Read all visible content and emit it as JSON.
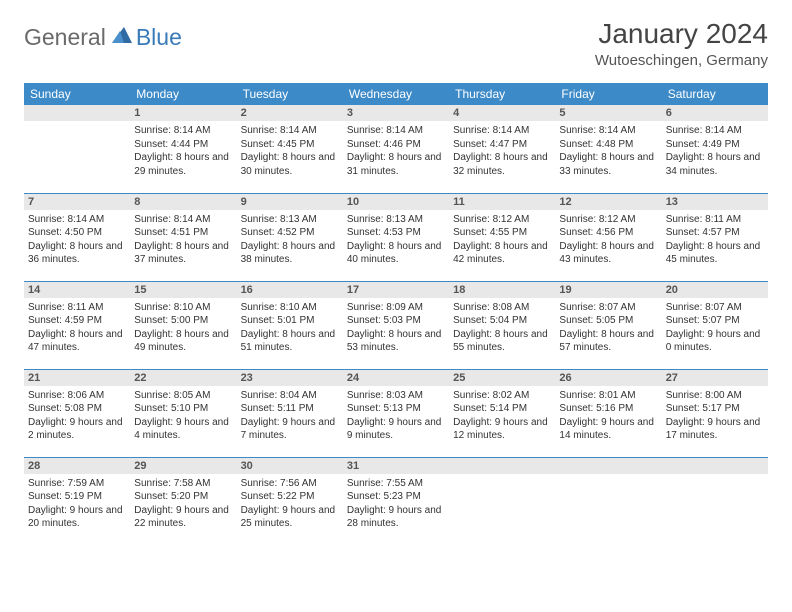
{
  "brand": {
    "part1": "General",
    "part2": "Blue"
  },
  "title": "January 2024",
  "location": "Wutoeschingen, Germany",
  "colors": {
    "header_bg": "#3c8ac8",
    "header_text": "#ffffff",
    "daynum_bg": "#e8e8e8",
    "daynum_text": "#555555",
    "body_text": "#333333",
    "rule": "#3c8ac8",
    "logo_gray": "#6a6a6a",
    "logo_blue": "#3a7ab8"
  },
  "weekdays": [
    "Sunday",
    "Monday",
    "Tuesday",
    "Wednesday",
    "Thursday",
    "Friday",
    "Saturday"
  ],
  "first_day_index": 1,
  "days": [
    {
      "n": 1,
      "sunrise": "8:14 AM",
      "sunset": "4:44 PM",
      "daylight": "8 hours and 29 minutes."
    },
    {
      "n": 2,
      "sunrise": "8:14 AM",
      "sunset": "4:45 PM",
      "daylight": "8 hours and 30 minutes."
    },
    {
      "n": 3,
      "sunrise": "8:14 AM",
      "sunset": "4:46 PM",
      "daylight": "8 hours and 31 minutes."
    },
    {
      "n": 4,
      "sunrise": "8:14 AM",
      "sunset": "4:47 PM",
      "daylight": "8 hours and 32 minutes."
    },
    {
      "n": 5,
      "sunrise": "8:14 AM",
      "sunset": "4:48 PM",
      "daylight": "8 hours and 33 minutes."
    },
    {
      "n": 6,
      "sunrise": "8:14 AM",
      "sunset": "4:49 PM",
      "daylight": "8 hours and 34 minutes."
    },
    {
      "n": 7,
      "sunrise": "8:14 AM",
      "sunset": "4:50 PM",
      "daylight": "8 hours and 36 minutes."
    },
    {
      "n": 8,
      "sunrise": "8:14 AM",
      "sunset": "4:51 PM",
      "daylight": "8 hours and 37 minutes."
    },
    {
      "n": 9,
      "sunrise": "8:13 AM",
      "sunset": "4:52 PM",
      "daylight": "8 hours and 38 minutes."
    },
    {
      "n": 10,
      "sunrise": "8:13 AM",
      "sunset": "4:53 PM",
      "daylight": "8 hours and 40 minutes."
    },
    {
      "n": 11,
      "sunrise": "8:12 AM",
      "sunset": "4:55 PM",
      "daylight": "8 hours and 42 minutes."
    },
    {
      "n": 12,
      "sunrise": "8:12 AM",
      "sunset": "4:56 PM",
      "daylight": "8 hours and 43 minutes."
    },
    {
      "n": 13,
      "sunrise": "8:11 AM",
      "sunset": "4:57 PM",
      "daylight": "8 hours and 45 minutes."
    },
    {
      "n": 14,
      "sunrise": "8:11 AM",
      "sunset": "4:59 PM",
      "daylight": "8 hours and 47 minutes."
    },
    {
      "n": 15,
      "sunrise": "8:10 AM",
      "sunset": "5:00 PM",
      "daylight": "8 hours and 49 minutes."
    },
    {
      "n": 16,
      "sunrise": "8:10 AM",
      "sunset": "5:01 PM",
      "daylight": "8 hours and 51 minutes."
    },
    {
      "n": 17,
      "sunrise": "8:09 AM",
      "sunset": "5:03 PM",
      "daylight": "8 hours and 53 minutes."
    },
    {
      "n": 18,
      "sunrise": "8:08 AM",
      "sunset": "5:04 PM",
      "daylight": "8 hours and 55 minutes."
    },
    {
      "n": 19,
      "sunrise": "8:07 AM",
      "sunset": "5:05 PM",
      "daylight": "8 hours and 57 minutes."
    },
    {
      "n": 20,
      "sunrise": "8:07 AM",
      "sunset": "5:07 PM",
      "daylight": "9 hours and 0 minutes."
    },
    {
      "n": 21,
      "sunrise": "8:06 AM",
      "sunset": "5:08 PM",
      "daylight": "9 hours and 2 minutes."
    },
    {
      "n": 22,
      "sunrise": "8:05 AM",
      "sunset": "5:10 PM",
      "daylight": "9 hours and 4 minutes."
    },
    {
      "n": 23,
      "sunrise": "8:04 AM",
      "sunset": "5:11 PM",
      "daylight": "9 hours and 7 minutes."
    },
    {
      "n": 24,
      "sunrise": "8:03 AM",
      "sunset": "5:13 PM",
      "daylight": "9 hours and 9 minutes."
    },
    {
      "n": 25,
      "sunrise": "8:02 AM",
      "sunset": "5:14 PM",
      "daylight": "9 hours and 12 minutes."
    },
    {
      "n": 26,
      "sunrise": "8:01 AM",
      "sunset": "5:16 PM",
      "daylight": "9 hours and 14 minutes."
    },
    {
      "n": 27,
      "sunrise": "8:00 AM",
      "sunset": "5:17 PM",
      "daylight": "9 hours and 17 minutes."
    },
    {
      "n": 28,
      "sunrise": "7:59 AM",
      "sunset": "5:19 PM",
      "daylight": "9 hours and 20 minutes."
    },
    {
      "n": 29,
      "sunrise": "7:58 AM",
      "sunset": "5:20 PM",
      "daylight": "9 hours and 22 minutes."
    },
    {
      "n": 30,
      "sunrise": "7:56 AM",
      "sunset": "5:22 PM",
      "daylight": "9 hours and 25 minutes."
    },
    {
      "n": 31,
      "sunrise": "7:55 AM",
      "sunset": "5:23 PM",
      "daylight": "9 hours and 28 minutes."
    }
  ],
  "labels": {
    "sunrise": "Sunrise:",
    "sunset": "Sunset:",
    "daylight": "Daylight:"
  }
}
